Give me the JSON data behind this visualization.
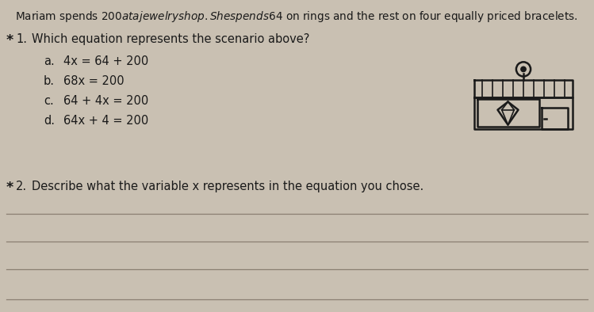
{
  "background_color": "#c9c0b2",
  "title_text": "Mariam spends $200 at a jewelry shop. She spends $64 on rings and the rest on four equally priced bracelets.",
  "q1_star": "*",
  "q1_num": "1.",
  "question1_text": "Which equation represents the scenario above?",
  "options": [
    {
      "label": "a.",
      "equation": "4x = 64 + 200"
    },
    {
      "label": "b.",
      "equation": "68x = 200"
    },
    {
      "label": "c.",
      "equation": "64 + 4x = 200"
    },
    {
      "label": "d.",
      "equation": "64x + 4 = 200"
    }
  ],
  "q2_star": "*",
  "q2_num": "2.",
  "question2_text": "Describe what the variable x represents in the equation you chose.",
  "line_color": "#8a7f72",
  "text_color": "#1a1a1a",
  "title_fontsize": 9.8,
  "body_fontsize": 10.5,
  "option_fontsize": 10.5,
  "icon_color": "#1a1a1a"
}
